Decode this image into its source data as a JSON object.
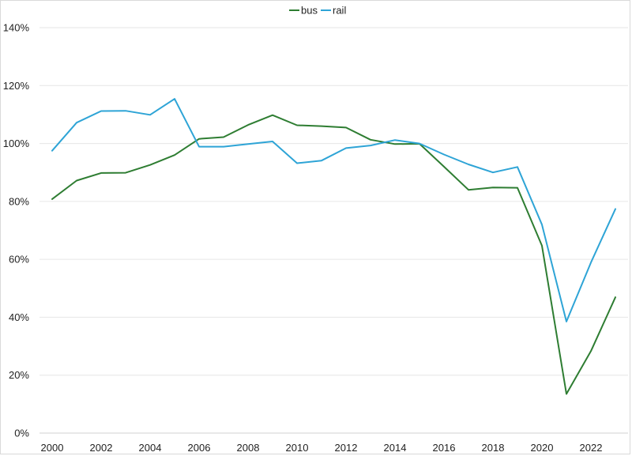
{
  "chart_data": {
    "type": "line",
    "x": [
      2000,
      2001,
      2002,
      2003,
      2004,
      2005,
      2006,
      2007,
      2008,
      2009,
      2010,
      2011,
      2012,
      2013,
      2014,
      2015,
      2016,
      2017,
      2018,
      2019,
      2020,
      2021,
      2022,
      2023
    ],
    "series": [
      {
        "name": "bus",
        "color": "#2e7d32",
        "values": [
          80.8,
          87.2,
          89.8,
          89.9,
          92.6,
          96.0,
          101.6,
          102.2,
          106.4,
          109.8,
          106.3,
          106.0,
          105.5,
          101.3,
          99.8,
          99.9,
          92.0,
          84.0,
          84.8,
          84.7,
          64.7,
          13.5,
          28.3,
          46.9
        ]
      },
      {
        "name": "rail",
        "color": "#2ea4d6",
        "values": [
          97.5,
          107.2,
          111.2,
          111.3,
          109.9,
          115.4,
          98.9,
          98.9,
          99.8,
          100.7,
          93.2,
          94.1,
          98.4,
          99.3,
          101.2,
          100.0,
          96.2,
          92.8,
          90.0,
          91.9,
          72.0,
          38.5,
          58.9,
          77.4
        ]
      }
    ],
    "y_ticks": [
      "0%",
      "20%",
      "40%",
      "60%",
      "80%",
      "100%",
      "120%",
      "140%"
    ],
    "x_ticks": [
      "2000",
      "2002",
      "2004",
      "2006",
      "2008",
      "2010",
      "2012",
      "2014",
      "2016",
      "2018",
      "2020",
      "2022"
    ],
    "ylim": [
      0,
      140
    ],
    "y_unit": "%",
    "grid": true,
    "legend_position": "top-center"
  }
}
